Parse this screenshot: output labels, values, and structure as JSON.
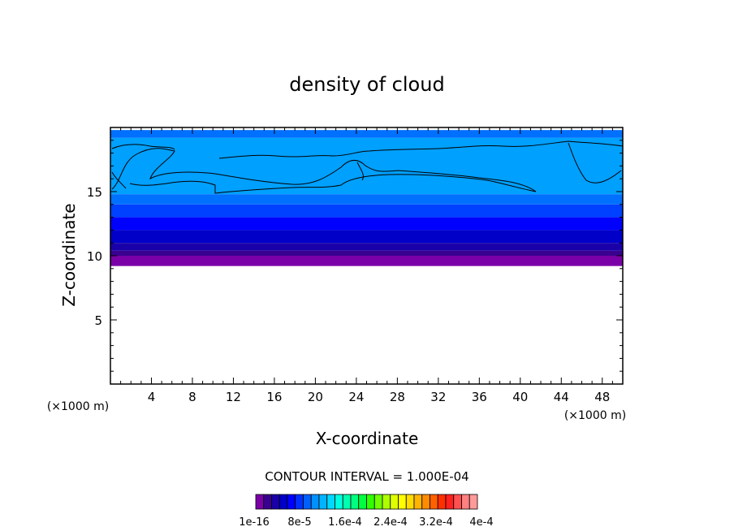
{
  "chart_data": {
    "type": "heatmap",
    "title": "density of cloud",
    "xlabel": "X-coordinate",
    "ylabel": "Z-coordinate",
    "x_unit": "(×1000 m)",
    "z_unit": "(×1000 m)",
    "xlim": [
      0,
      50
    ],
    "ylim": [
      0,
      20
    ],
    "x_ticks": [
      4,
      8,
      12,
      16,
      20,
      24,
      28,
      32,
      36,
      40,
      44,
      48
    ],
    "y_ticks": [
      5,
      10,
      15
    ],
    "contour_interval": "CONTOUR INTERVAL = 1.000E-04",
    "colorbar": {
      "colors": [
        "#7a00a8",
        "#3a0090",
        "#1a00a8",
        "#0000c8",
        "#0000ff",
        "#0030ff",
        "#0060ff",
        "#0090ff",
        "#00b4ff",
        "#00d8ff",
        "#00ffe0",
        "#00ffb0",
        "#00ff80",
        "#00ff40",
        "#30ff00",
        "#70ff00",
        "#b0ff00",
        "#e0ff00",
        "#ffff00",
        "#ffdc00",
        "#ffb400",
        "#ff8c00",
        "#ff6000",
        "#ff3000",
        "#ff2020",
        "#ff5050",
        "#ff8080",
        "#ff9a9a"
      ],
      "labels": [
        "1e-16",
        "8e-5",
        "1.6e-4",
        "2.4e-4",
        "3.2e-4",
        "4e-4"
      ]
    },
    "bands": [
      {
        "z0": 9.2,
        "z1": 10.0,
        "color": "#7a00a8"
      },
      {
        "z0": 10.0,
        "z1": 10.4,
        "color": "#3a0090"
      },
      {
        "z0": 10.4,
        "z1": 11.0,
        "color": "#1a00a8"
      },
      {
        "z0": 11.0,
        "z1": 12.0,
        "color": "#0000c8"
      },
      {
        "z0": 12.0,
        "z1": 13.0,
        "color": "#0000ff"
      },
      {
        "z0": 13.0,
        "z1": 14.0,
        "color": "#0040ff"
      },
      {
        "z0": 14.0,
        "z1": 14.8,
        "color": "#0070ff"
      },
      {
        "z0": 14.8,
        "z1": 19.2,
        "color": "#00a0ff"
      },
      {
        "z0": 19.2,
        "z1": 19.8,
        "color": "#0070ff"
      }
    ]
  }
}
